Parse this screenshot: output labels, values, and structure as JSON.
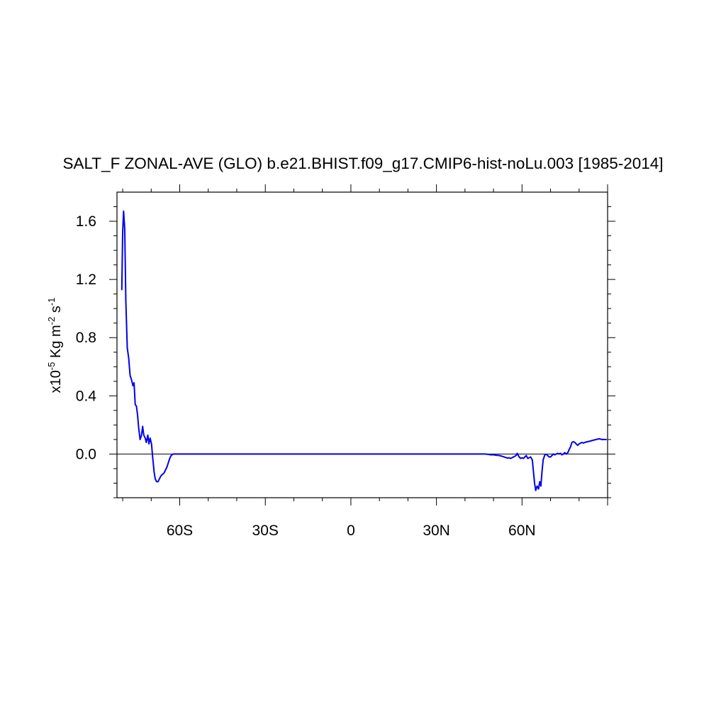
{
  "chart_data": {
    "type": "line",
    "title": "SALT_F ZONAL-AVE (GLO) b.e21.BHIST.f09_g17.CMIP6-hist-noLu.003 [1985-2014]",
    "ylabel": {
      "prefix": "x10",
      "exp1": "-5",
      "mid": " Kg m",
      "exp2": "-2",
      "mid2": " s",
      "exp3": "-1"
    },
    "xlabel": "",
    "x_ticks": [
      {
        "value": -60,
        "label": "60S"
      },
      {
        "value": -30,
        "label": "30S"
      },
      {
        "value": 0,
        "label": "0"
      },
      {
        "value": 30,
        "label": "30N"
      },
      {
        "value": 60,
        "label": "60N"
      }
    ],
    "y_ticks": [
      {
        "value": 0.0,
        "label": "0.0"
      },
      {
        "value": 0.4,
        "label": "0.4"
      },
      {
        "value": 0.8,
        "label": "0.8"
      },
      {
        "value": 1.2,
        "label": "1.2"
      },
      {
        "value": 1.6,
        "label": "1.6"
      }
    ],
    "xlim": [
      -82,
      90
    ],
    "ylim": [
      -0.3,
      1.8
    ],
    "reference_line": 0.0,
    "grid": false,
    "colors": {
      "line": "#0000ee",
      "axis": "#000000",
      "reference": "#000000"
    },
    "series": [
      {
        "values": [
          [
            -80.3,
            1.13
          ],
          [
            -80.0,
            1.52
          ],
          [
            -79.7,
            1.67
          ],
          [
            -79.3,
            1.55
          ],
          [
            -78.9,
            1.05
          ],
          [
            -78.4,
            0.73
          ],
          [
            -77.9,
            0.66
          ],
          [
            -77.4,
            0.54
          ],
          [
            -76.9,
            0.51
          ],
          [
            -76.4,
            0.47
          ],
          [
            -76.0,
            0.49
          ],
          [
            -75.6,
            0.34
          ],
          [
            -75.2,
            0.33
          ],
          [
            -74.8,
            0.27
          ],
          [
            -74.4,
            0.18
          ],
          [
            -73.9,
            0.1
          ],
          [
            -73.4,
            0.13
          ],
          [
            -73.0,
            0.19
          ],
          [
            -72.6,
            0.13
          ],
          [
            -72.1,
            0.11
          ],
          [
            -71.7,
            0.08
          ],
          [
            -71.2,
            0.13
          ],
          [
            -70.8,
            0.07
          ],
          [
            -70.4,
            0.11
          ],
          [
            -69.9,
            0.07
          ],
          [
            -69.5,
            -0.02
          ],
          [
            -69.0,
            -0.12
          ],
          [
            -68.6,
            -0.17
          ],
          [
            -68.1,
            -0.19
          ],
          [
            -67.6,
            -0.19
          ],
          [
            -67.1,
            -0.17
          ],
          [
            -66.6,
            -0.15
          ],
          [
            -66.1,
            -0.14
          ],
          [
            -65.5,
            -0.13
          ],
          [
            -65.0,
            -0.11
          ],
          [
            -64.5,
            -0.09
          ],
          [
            -64.0,
            -0.06
          ],
          [
            -63.5,
            -0.03
          ],
          [
            -63.0,
            -0.01
          ],
          [
            -62.3,
            0.0
          ],
          [
            -61.0,
            0.0
          ],
          [
            -50.0,
            0.0
          ],
          [
            -30.0,
            0.0
          ],
          [
            0.0,
            0.0
          ],
          [
            30.0,
            0.0
          ],
          [
            45.0,
            0.0
          ],
          [
            47.0,
            0.0
          ],
          [
            48.0,
            -0.002
          ],
          [
            49.0,
            -0.005
          ],
          [
            50.0,
            -0.005
          ],
          [
            51.0,
            -0.008
          ],
          [
            52.0,
            -0.01
          ],
          [
            53.0,
            -0.015
          ],
          [
            54.0,
            -0.022
          ],
          [
            55.0,
            -0.028
          ],
          [
            55.5,
            -0.025
          ],
          [
            56.0,
            -0.03
          ],
          [
            56.5,
            -0.025
          ],
          [
            57.0,
            -0.02
          ],
          [
            57.5,
            -0.015
          ],
          [
            58.0,
            -0.008
          ],
          [
            58.3,
            0.005
          ],
          [
            58.7,
            -0.01
          ],
          [
            59.0,
            -0.02
          ],
          [
            59.5,
            -0.03
          ],
          [
            60.0,
            -0.025
          ],
          [
            60.5,
            -0.03
          ],
          [
            61.0,
            -0.02
          ],
          [
            61.5,
            -0.01
          ],
          [
            62.0,
            -0.03
          ],
          [
            62.5,
            -0.025
          ],
          [
            63.0,
            -0.02
          ],
          [
            63.6,
            -0.04
          ],
          [
            64.0,
            -0.12
          ],
          [
            64.4,
            -0.2
          ],
          [
            64.8,
            -0.25
          ],
          [
            65.3,
            -0.22
          ],
          [
            65.8,
            -0.24
          ],
          [
            66.2,
            -0.19
          ],
          [
            66.6,
            -0.22
          ],
          [
            67.0,
            -0.12
          ],
          [
            67.4,
            -0.04
          ],
          [
            68.0,
            -0.005
          ],
          [
            68.5,
            -0.002
          ],
          [
            69.0,
            -0.01
          ],
          [
            69.5,
            -0.02
          ],
          [
            70.0,
            -0.02
          ],
          [
            70.5,
            -0.01
          ],
          [
            71.0,
            0.0
          ],
          [
            71.5,
            -0.005
          ],
          [
            72.0,
            0.0
          ],
          [
            72.5,
            0.005
          ],
          [
            73.0,
            0.0
          ],
          [
            73.5,
            0.005
          ],
          [
            74.0,
            -0.005
          ],
          [
            74.5,
            0.0
          ],
          [
            75.0,
            0.01
          ],
          [
            75.5,
            0.0
          ],
          [
            76.0,
            0.008
          ],
          [
            76.5,
            0.03
          ],
          [
            77.0,
            0.05
          ],
          [
            77.5,
            0.08
          ],
          [
            78.0,
            0.085
          ],
          [
            78.5,
            0.08
          ],
          [
            79.0,
            0.07
          ],
          [
            79.5,
            0.06
          ],
          [
            80.0,
            0.07
          ],
          [
            80.5,
            0.075
          ],
          [
            81.0,
            0.08
          ],
          [
            81.5,
            0.075
          ],
          [
            82.0,
            0.08
          ],
          [
            83.0,
            0.085
          ],
          [
            84.0,
            0.09
          ],
          [
            85.0,
            0.095
          ],
          [
            86.0,
            0.1
          ],
          [
            87.0,
            0.105
          ],
          [
            88.0,
            0.1
          ],
          [
            89.5,
            0.1
          ]
        ]
      }
    ]
  }
}
